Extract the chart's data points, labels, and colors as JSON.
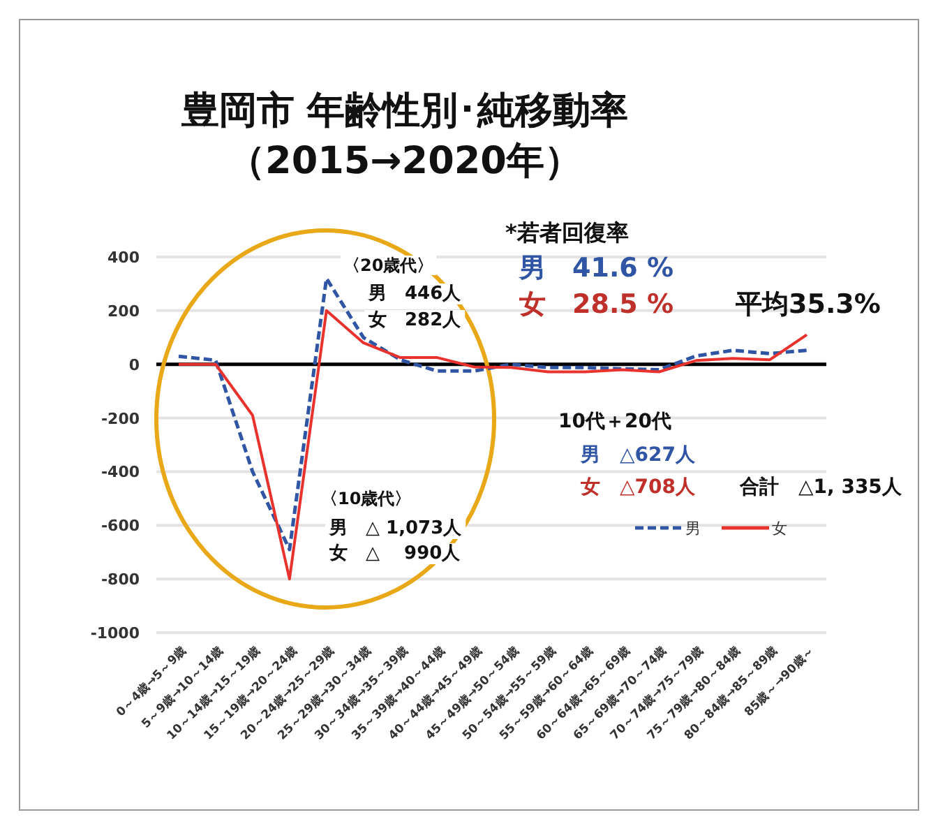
{
  "chart_data": {
    "type": "line",
    "title": "豊岡市 年齢性別･純移動率",
    "subtitle": "（2015→2020年）",
    "categories": [
      "0～4歳→5～9歳",
      "5～9歳→10～14歳",
      "10～14歳→15～19歳",
      "15～19歳→20～24歳",
      "20～24歳→25～29歳",
      "25～29歳→30～34歳",
      "30～34歳→35～39歳",
      "35～39歳→40～44歳",
      "40～44歳→45～49歳",
      "45～49歳→50～54歳",
      "50～54歳→55～59歳",
      "55～59歳→60～64歳",
      "60～64歳→65～69歳",
      "65～69歳→70～74歳",
      "70～74歳→75～79歳",
      "75～79歳→80～84歳",
      "80～84歳→85～89歳",
      "85歳～→90歳～"
    ],
    "series": [
      {
        "name": "男",
        "color": "#2f55a4",
        "line_style": "dashed",
        "values": [
          30,
          15,
          -400,
          -690,
          320,
          100,
          17,
          -25,
          -25,
          0,
          -12,
          -12,
          -17,
          -20,
          31,
          52,
          40,
          52
        ]
      },
      {
        "name": "女",
        "color": "#e8322d",
        "line_style": "solid",
        "values": [
          0,
          0,
          -190,
          -800,
          200,
          80,
          25,
          25,
          -10,
          -12,
          -28,
          -28,
          -20,
          -28,
          14,
          22,
          17,
          110
        ]
      }
    ],
    "ylim": [
      -1000,
      400
    ],
    "yticks": [
      -1000,
      -800,
      -600,
      -400,
      -200,
      0,
      200,
      400
    ],
    "grid": "y",
    "legend": "bottom right",
    "marker": "none",
    "ref_lines": [
      {
        "axis": "y",
        "value": 0,
        "color": "#000000"
      }
    ],
    "annotations": [
      "〈20歳代〉",
      "男　446人",
      "女　282人",
      "〈10歳代〉",
      "男　△ 1,073人",
      "女　△　 990人",
      "*若者回復率",
      "男　41.6 %",
      "女　28.5 %",
      "平均35.3%",
      "10代＋20代",
      "男　△627人",
      "女　△708人",
      "合計　△1, 335人"
    ]
  }
}
